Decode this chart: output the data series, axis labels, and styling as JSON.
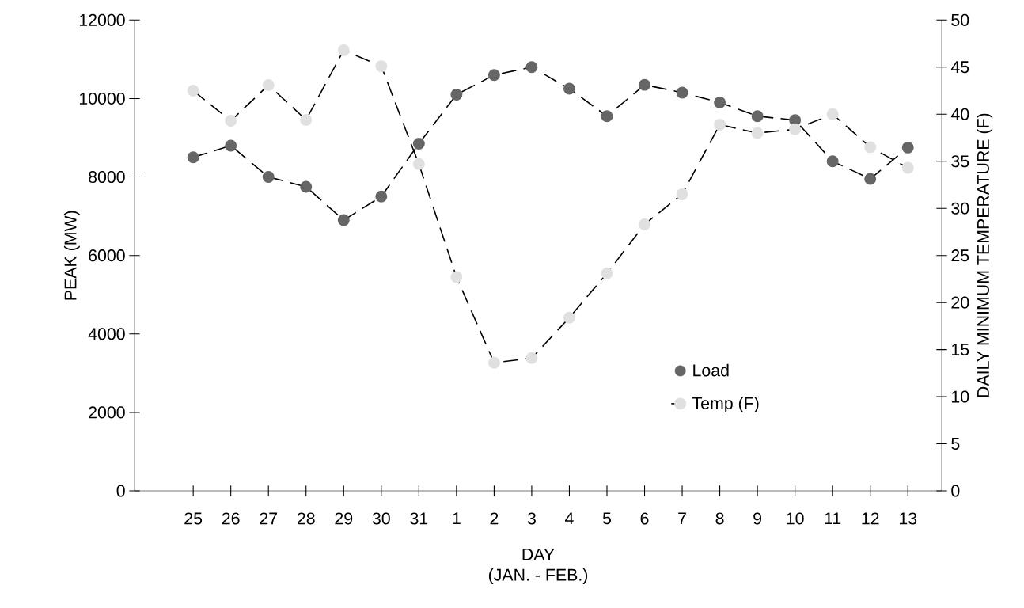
{
  "chart_data": {
    "type": "line",
    "categories": [
      "25",
      "26",
      "27",
      "28",
      "29",
      "30",
      "31",
      "1",
      "2",
      "3",
      "4",
      "5",
      "6",
      "7",
      "8",
      "9",
      "10",
      "11",
      "12",
      "13"
    ],
    "series": [
      {
        "name": "Load",
        "color": "#666666",
        "values": [
          8500,
          8800,
          8000,
          7750,
          6900,
          7500,
          8850,
          10100,
          10600,
          10800,
          10250,
          9550,
          10350,
          10150,
          9900,
          9550,
          9450,
          8400,
          7950,
          8750
        ]
      },
      {
        "name": "Temp (F)",
        "color": "#e0e0e0",
        "axis": "y2",
        "values": [
          42.5,
          39.3,
          43.1,
          39.4,
          46.8,
          45.1,
          34.7,
          22.7,
          13.6,
          14.1,
          18.4,
          23.1,
          28.3,
          31.5,
          38.9,
          38.0,
          38.4,
          40.0,
          36.5,
          34.3
        ]
      }
    ],
    "xlabel": "DAY",
    "ylabel": "PEAK (MW)",
    "y2label": "DAILY MINIMUM TEMPERATURE (F)",
    "annotations": [
      "(JAN. - FEB.)"
    ],
    "ylim": [
      0,
      12000
    ],
    "yticks": [
      0,
      2000,
      4000,
      6000,
      8000,
      10000,
      12000
    ],
    "y2lim": [
      0,
      50
    ],
    "y2ticks": [
      0,
      5,
      10,
      15,
      20,
      25,
      30,
      35,
      40,
      45,
      50
    ],
    "marker": "circle",
    "line_style": "dashed",
    "legend": "right",
    "grid": false
  }
}
